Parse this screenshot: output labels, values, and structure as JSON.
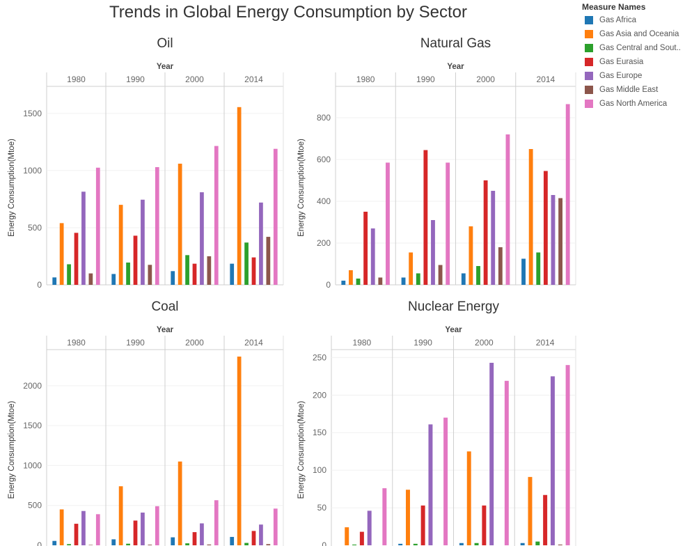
{
  "title": "Trends in Global Energy Consumption by Sector",
  "legend": {
    "title": "Measure Names",
    "items": [
      {
        "label": "Gas Africa",
        "color": "#1f77b4"
      },
      {
        "label": "Gas Asia and Oceania",
        "color": "#ff7f0e"
      },
      {
        "label": "Gas Central and Sout..",
        "color": "#2ca02c"
      },
      {
        "label": "Gas Eurasia",
        "color": "#d62728"
      },
      {
        "label": "Gas Europe",
        "color": "#9467bd"
      },
      {
        "label": "Gas Middle East",
        "color": "#8c564b"
      },
      {
        "label": "Gas North America",
        "color": "#e377c2"
      }
    ]
  },
  "chart_data": [
    {
      "type": "bar",
      "title": "Oil",
      "column_header": "Year",
      "categories": [
        "1980",
        "1990",
        "2000",
        "2014"
      ],
      "ylabel": "Energy Consumption(Mtoe)",
      "ylim": [
        0,
        1700
      ],
      "yticks": [
        0,
        500,
        1000,
        1500
      ],
      "series": [
        {
          "name": "Gas Africa",
          "values": [
            65,
            95,
            120,
            185
          ]
        },
        {
          "name": "Gas Asia and Oceania",
          "values": [
            540,
            700,
            1060,
            1555
          ]
        },
        {
          "name": "Gas Central and Sout..",
          "values": [
            180,
            195,
            260,
            370
          ]
        },
        {
          "name": "Gas Eurasia",
          "values": [
            455,
            430,
            185,
            240
          ]
        },
        {
          "name": "Gas Europe",
          "values": [
            815,
            745,
            810,
            720
          ]
        },
        {
          "name": "Gas Middle East",
          "values": [
            100,
            175,
            250,
            420
          ]
        },
        {
          "name": "Gas North America",
          "values": [
            1025,
            1030,
            1215,
            1190
          ]
        }
      ]
    },
    {
      "type": "bar",
      "title": "Natural Gas",
      "column_header": "Year",
      "categories": [
        "1980",
        "1990",
        "2000",
        "2014"
      ],
      "ylabel": "Energy Consumption(Mtoe)",
      "ylim": [
        0,
        930
      ],
      "yticks": [
        0,
        200,
        400,
        600,
        800
      ],
      "series": [
        {
          "name": "Gas Africa",
          "values": [
            20,
            35,
            55,
            125
          ]
        },
        {
          "name": "Gas Asia and Oceania",
          "values": [
            70,
            155,
            280,
            650
          ]
        },
        {
          "name": "Gas Central and Sout..",
          "values": [
            30,
            55,
            90,
            155
          ]
        },
        {
          "name": "Gas Eurasia",
          "values": [
            350,
            645,
            500,
            545
          ]
        },
        {
          "name": "Gas Europe",
          "values": [
            270,
            310,
            450,
            430
          ]
        },
        {
          "name": "Gas Middle East",
          "values": [
            35,
            95,
            180,
            415
          ]
        },
        {
          "name": "Gas North America",
          "values": [
            585,
            585,
            720,
            865
          ]
        }
      ]
    },
    {
      "type": "bar",
      "title": "Coal",
      "column_header": "Year",
      "categories": [
        "1980",
        "1990",
        "2000",
        "2014"
      ],
      "ylabel": "Energy Consumption(Mtoe)",
      "ylim": [
        0,
        2400
      ],
      "yticks": [
        0,
        500,
        1000,
        1500,
        2000
      ],
      "series": [
        {
          "name": "Gas Africa",
          "values": [
            55,
            75,
            100,
            105
          ]
        },
        {
          "name": "Gas Asia and Oceania",
          "values": [
            450,
            740,
            1050,
            2365
          ]
        },
        {
          "name": "Gas Central and Sout..",
          "values": [
            15,
            20,
            25,
            30
          ]
        },
        {
          "name": "Gas Eurasia",
          "values": [
            270,
            310,
            165,
            180
          ]
        },
        {
          "name": "Gas Europe",
          "values": [
            430,
            410,
            275,
            260
          ]
        },
        {
          "name": "Gas Middle East",
          "values": [
            5,
            8,
            10,
            15
          ]
        },
        {
          "name": "Gas North America",
          "values": [
            390,
            490,
            565,
            460
          ]
        }
      ]
    },
    {
      "type": "bar",
      "title": "Nuclear Energy",
      "column_header": "Year",
      "categories": [
        "1980",
        "1990",
        "2000",
        "2014"
      ],
      "ylabel": "Energy Consumption(Mtoe)",
      "ylim": [
        0,
        255
      ],
      "yticks": [
        0,
        50,
        100,
        150,
        200,
        250
      ],
      "series": [
        {
          "name": "Gas Africa",
          "values": [
            0,
            2,
            3,
            3
          ]
        },
        {
          "name": "Gas Asia and Oceania",
          "values": [
            24,
            74,
            125,
            91
          ]
        },
        {
          "name": "Gas Central and Sout..",
          "values": [
            1,
            2,
            3,
            5
          ]
        },
        {
          "name": "Gas Eurasia",
          "values": [
            18,
            53,
            53,
            67
          ]
        },
        {
          "name": "Gas Europe",
          "values": [
            46,
            161,
            243,
            225
          ]
        },
        {
          "name": "Gas Middle East",
          "values": [
            0,
            0,
            0,
            1
          ]
        },
        {
          "name": "Gas North America",
          "values": [
            76,
            170,
            219,
            240
          ]
        }
      ]
    }
  ]
}
